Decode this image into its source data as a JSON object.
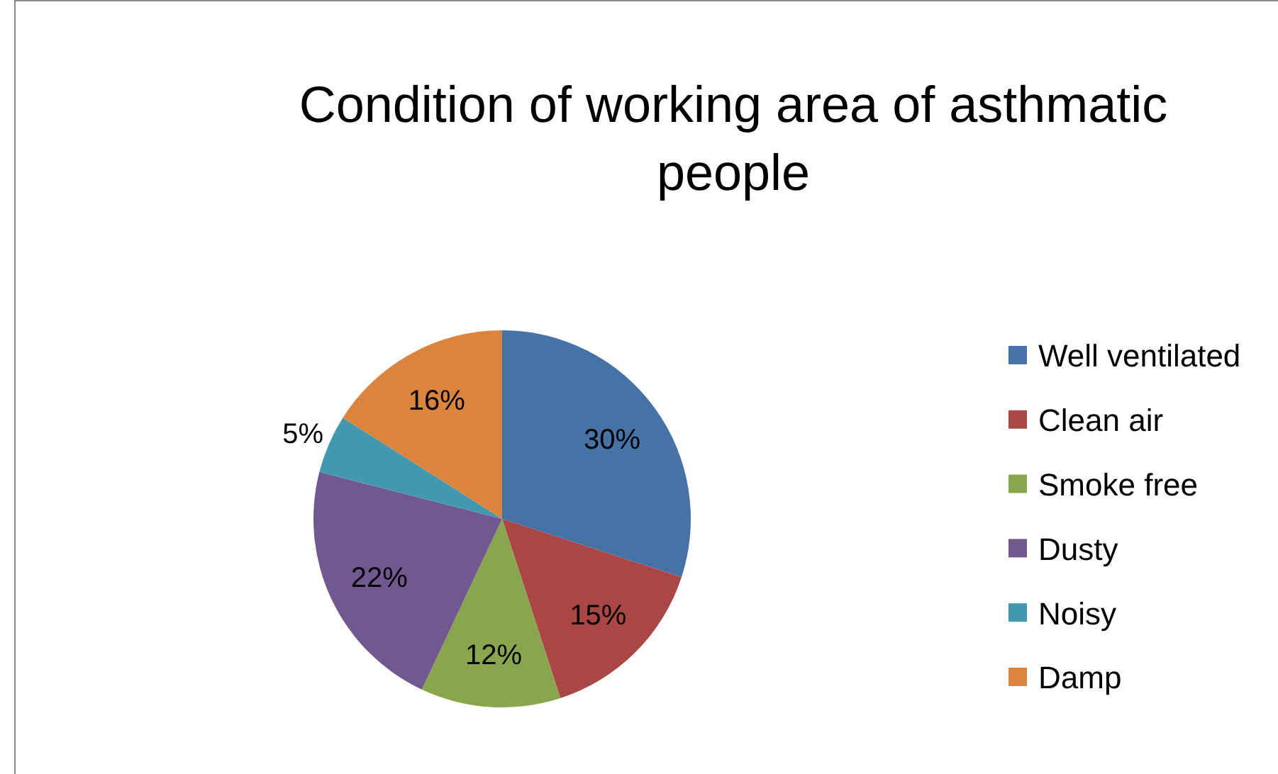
{
  "chart_data": {
    "type": "pie",
    "title": "Condition of working area of asthmatic people",
    "categories": [
      "Well ventilated",
      "Clean air",
      "Smoke free",
      "Dusty",
      "Noisy",
      "Damp"
    ],
    "values": [
      30,
      15,
      12,
      22,
      5,
      16
    ],
    "colors": [
      "#4572a7",
      "#aa4643",
      "#89a54e",
      "#71588f",
      "#4198af",
      "#db843d"
    ],
    "value_labels": [
      "30%",
      "15%",
      "12%",
      "22%",
      "5%",
      "16%"
    ],
    "legend": "right"
  }
}
